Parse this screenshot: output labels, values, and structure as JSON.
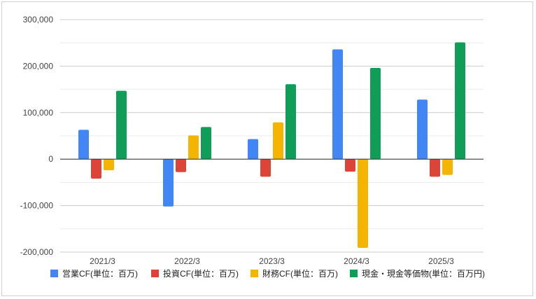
{
  "chart_data": {
    "type": "bar",
    "categories": [
      "2021/3",
      "2022/3",
      "2023/3",
      "2024/3",
      "2025/3"
    ],
    "series": [
      {
        "name": "営業CF(単位：百万)",
        "color": "#4285F4",
        "values": [
          63000,
          -102000,
          43000,
          236000,
          128000
        ]
      },
      {
        "name": "投資CF(単位：百万)",
        "color": "#DB4437",
        "values": [
          -42000,
          -28000,
          -38000,
          -27000,
          -38000
        ]
      },
      {
        "name": "財務CF(単位：百万)",
        "color": "#F4B400",
        "values": [
          -24000,
          51000,
          79000,
          -191000,
          -34000
        ]
      },
      {
        "name": "現金・現金等価物(単位：百万円)",
        "color": "#0F9D58",
        "values": [
          147000,
          69000,
          161000,
          196000,
          251000
        ]
      }
    ],
    "y_ticks": [
      "300,000",
      "200,000",
      "100,000",
      "0",
      "-100,000",
      "-200,000"
    ],
    "ylim": [
      -200000,
      300000
    ],
    "grid": true,
    "legend_position": "bottom",
    "title": "",
    "xlabel": "",
    "ylabel": ""
  }
}
